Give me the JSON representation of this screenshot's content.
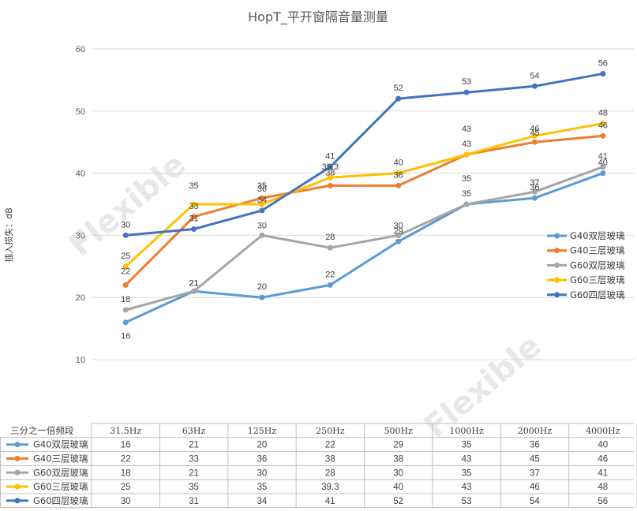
{
  "chart_data": {
    "type": "line",
    "title": "HopT_平开窗隔音量测量",
    "ylabel": "插入损失：dB",
    "xlabel": "",
    "table_header": "三分之一倍频段",
    "categories": [
      "31.5Hz",
      "63Hz",
      "125Hz",
      "250Hz",
      "500Hz",
      "1000Hz",
      "2000Hz",
      "4000Hz"
    ],
    "ylim": [
      10,
      60
    ],
    "yticks": [
      10,
      20,
      30,
      40,
      50,
      60
    ],
    "grid": true,
    "legend_position": "right",
    "watermark": "Flexible",
    "series": [
      {
        "name": "G40双层玻璃",
        "color": "#5B9BD5",
        "values": [
          16,
          21,
          20,
          22,
          29,
          35,
          36,
          40
        ]
      },
      {
        "name": "G40三层玻璃",
        "color": "#ED7D31",
        "values": [
          22,
          33,
          36,
          38,
          38,
          43,
          45,
          46
        ]
      },
      {
        "name": "G60双层玻璃",
        "color": "#A5A5A5",
        "values": [
          18,
          21,
          30,
          28,
          30,
          35,
          37,
          41
        ]
      },
      {
        "name": "G60三层玻璃",
        "color": "#FFC000",
        "values": [
          25,
          35,
          35,
          39.3,
          40,
          43,
          46,
          48
        ]
      },
      {
        "name": "G60四层玻璃",
        "color": "#4472C4",
        "values": [
          30,
          31,
          34,
          41,
          52,
          53,
          54,
          56
        ]
      }
    ]
  }
}
